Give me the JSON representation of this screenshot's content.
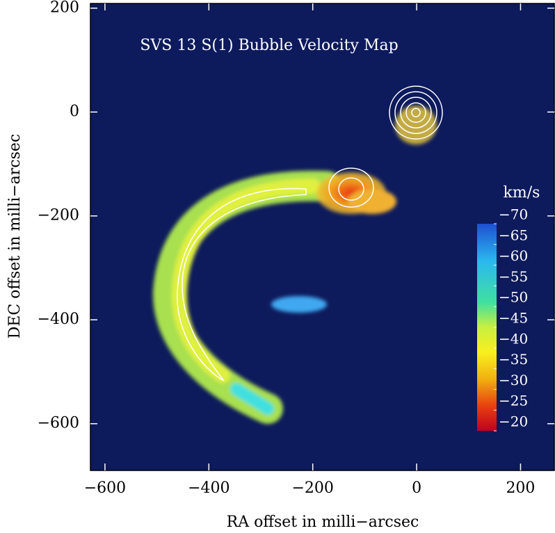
{
  "chart_data": {
    "type": "image",
    "title": "SVS 13 S(1) Bubble Velocity Map",
    "x_label": "RA offset in milli−arcsec",
    "y_label": "DEC offset in milli−arcsec",
    "xlim": [
      -628,
      265
    ],
    "ylim": [
      -690,
      209
    ],
    "xticks": [
      {
        "value": -600,
        "label": "−600"
      },
      {
        "value": -400,
        "label": "−400"
      },
      {
        "value": -200,
        "label": "−200"
      },
      0,
      200
    ],
    "yticks": [
      {
        "value": -600,
        "label": "−600"
      },
      {
        "value": -400,
        "label": "−400"
      },
      {
        "value": -200,
        "label": "−200"
      },
      0,
      200
    ],
    "colorbar_label": "km/s",
    "colorbar_lim": [
      -70,
      -20
    ],
    "colorbar_ticks": [
      {
        "value": -70,
        "label": "−70"
      },
      {
        "value": -65,
        "label": "−65"
      },
      {
        "value": -60,
        "label": "−60"
      },
      {
        "value": -55,
        "label": "−55"
      },
      {
        "value": -50,
        "label": "−50"
      },
      {
        "value": -45,
        "label": "−45"
      },
      {
        "value": -40,
        "label": "−40"
      },
      {
        "value": -35,
        "label": "−35"
      },
      {
        "value": -30,
        "label": "−30"
      },
      {
        "value": -25,
        "label": "−25"
      },
      {
        "value": -20,
        "label": "−20"
      }
    ]
  }
}
